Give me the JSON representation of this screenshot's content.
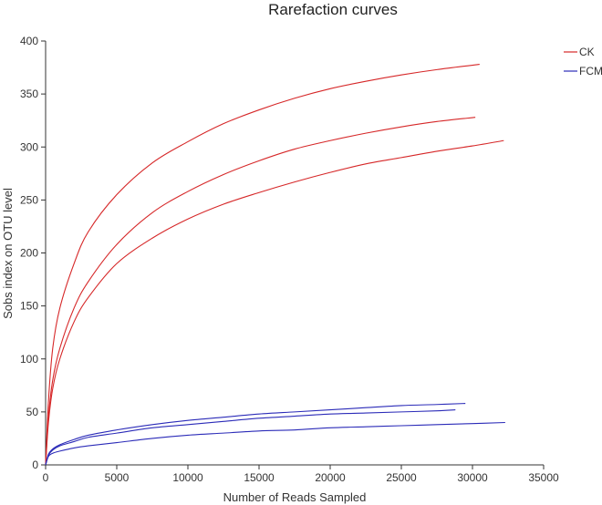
{
  "chart_data": {
    "type": "line",
    "title": "Rarefaction curves",
    "xlabel": "Number of Reads Sampled",
    "ylabel": "Sobs index on OTU level",
    "xlim": [
      0,
      35000
    ],
    "ylim": [
      0,
      400
    ],
    "xticks": [
      "0",
      "5000",
      "10000",
      "15000",
      "20000",
      "25000",
      "30000",
      "35000"
    ],
    "yticks": [
      "0",
      "50",
      "100",
      "150",
      "200",
      "250",
      "300",
      "350",
      "400"
    ],
    "grid": false,
    "legend_position": "top-right",
    "legend": [
      {
        "name": "CK",
        "color": "#d62728"
      },
      {
        "name": "FCM",
        "color": "#2b2bb8"
      }
    ],
    "series": [
      {
        "group": "CK",
        "color": "#d62728",
        "x": [
          0,
          200,
          500,
          1000,
          2000,
          3000,
          5000,
          7500,
          10000,
          12500,
          15000,
          17500,
          20000,
          22500,
          25000,
          27500,
          30500
        ],
        "y": [
          0,
          60,
          110,
          148,
          190,
          220,
          255,
          285,
          305,
          322,
          335,
          346,
          355,
          362,
          368,
          373,
          378
        ]
      },
      {
        "group": "CK",
        "color": "#d62728",
        "x": [
          0,
          200,
          500,
          1000,
          2000,
          3000,
          5000,
          7500,
          10000,
          12500,
          15000,
          17500,
          20000,
          22500,
          25000,
          27500,
          30200
        ],
        "y": [
          0,
          45,
          80,
          110,
          148,
          173,
          208,
          238,
          258,
          274,
          287,
          298,
          306,
          313,
          319,
          324,
          328
        ]
      },
      {
        "group": "CK",
        "color": "#d62728",
        "x": [
          0,
          200,
          500,
          1000,
          2000,
          3000,
          5000,
          7500,
          10000,
          12500,
          15000,
          17500,
          20000,
          22500,
          25000,
          27500,
          30000,
          32200
        ],
        "y": [
          0,
          40,
          72,
          100,
          135,
          158,
          190,
          214,
          232,
          246,
          257,
          267,
          276,
          284,
          290,
          296,
          301,
          306
        ]
      },
      {
        "group": "FCM",
        "color": "#2b2bb8",
        "x": [
          0,
          200,
          500,
          1000,
          2000,
          3000,
          5000,
          7500,
          10000,
          12500,
          15000,
          17500,
          20000,
          22500,
          25000,
          27500,
          29500
        ],
        "y": [
          0,
          10,
          15,
          19,
          24,
          28,
          33,
          38,
          42,
          45,
          48,
          50,
          52,
          54,
          56,
          57,
          58
        ]
      },
      {
        "group": "FCM",
        "color": "#2b2bb8",
        "x": [
          0,
          200,
          500,
          1000,
          2000,
          3000,
          5000,
          7500,
          10000,
          12500,
          15000,
          17500,
          20000,
          22500,
          25000,
          27500,
          28800
        ],
        "y": [
          0,
          9,
          14,
          18,
          22,
          26,
          30,
          35,
          38,
          41,
          44,
          46,
          48,
          49,
          50,
          51,
          52
        ]
      },
      {
        "group": "FCM",
        "color": "#2b2bb8",
        "x": [
          0,
          200,
          500,
          1000,
          2000,
          3000,
          5000,
          7500,
          10000,
          12500,
          15000,
          17500,
          20000,
          22500,
          25000,
          27500,
          30000,
          32300
        ],
        "y": [
          0,
          8,
          11,
          13,
          16,
          18,
          21,
          25,
          28,
          30,
          32,
          33,
          35,
          36,
          37,
          38,
          39,
          40
        ]
      }
    ]
  }
}
